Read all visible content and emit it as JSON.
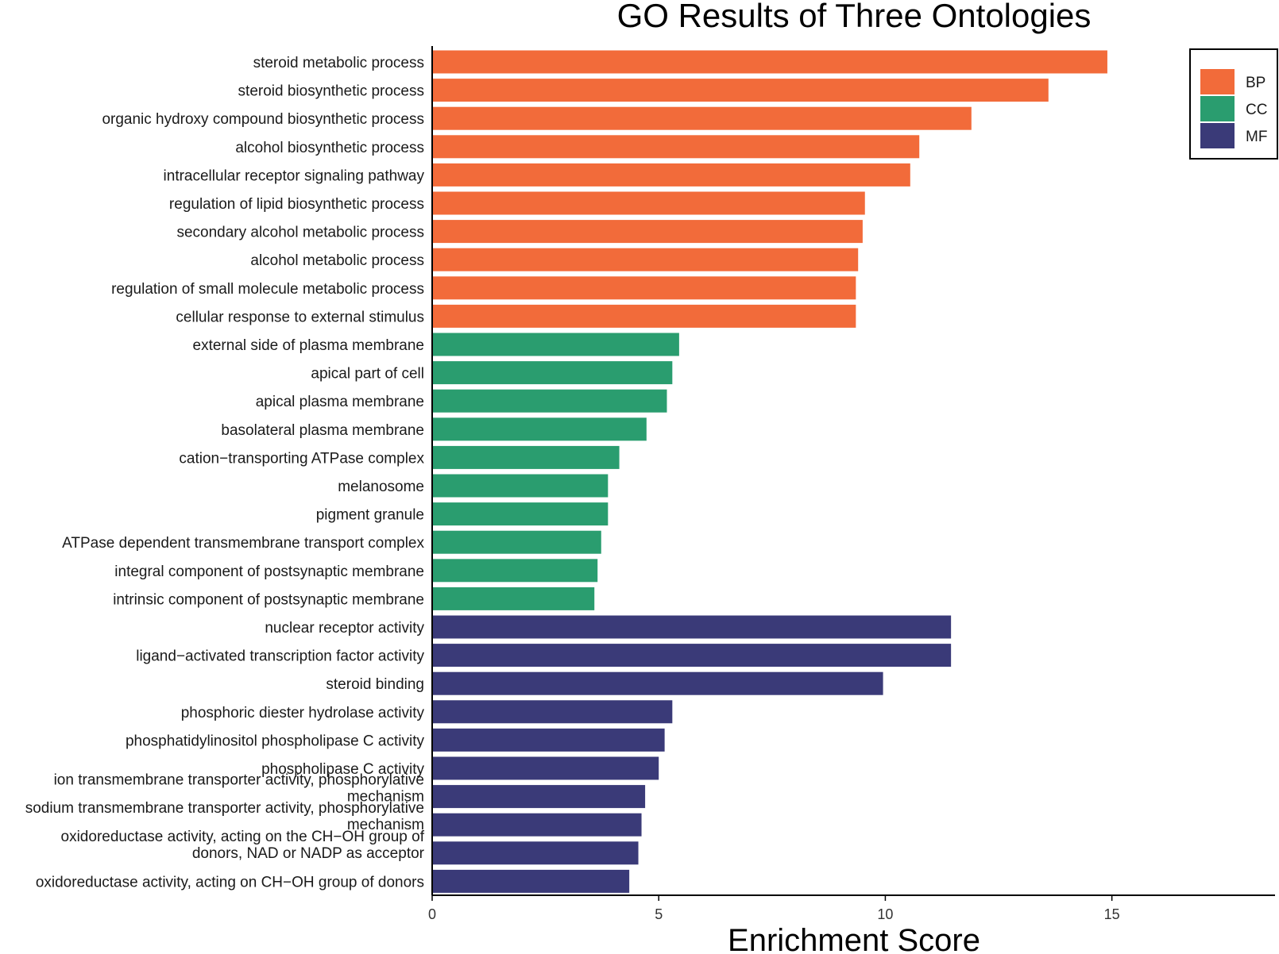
{
  "chart_data": {
    "type": "bar",
    "orientation": "horizontal",
    "title": "GO Results of Three Ontologies",
    "xlabel": "Enrichment Score",
    "ylabel": "",
    "xlim": [
      0,
      18.6
    ],
    "xticks": [
      0,
      5,
      10,
      15
    ],
    "grid": false,
    "legend_position": "top-right",
    "legend": [
      {
        "name": "BP",
        "color": "#F26B3A"
      },
      {
        "name": "CC",
        "color": "#2A9D6F"
      },
      {
        "name": "MF",
        "color": "#3A3A78"
      }
    ],
    "bars": [
      {
        "label": "steroid metabolic process",
        "value": 14.9,
        "group": "BP"
      },
      {
        "label": "steroid biosynthetic process",
        "value": 13.6,
        "group": "BP"
      },
      {
        "label": "organic hydroxy compound biosynthetic process",
        "value": 11.9,
        "group": "BP"
      },
      {
        "label": "alcohol biosynthetic process",
        "value": 10.75,
        "group": "BP"
      },
      {
        "label": "intracellular receptor signaling pathway",
        "value": 10.55,
        "group": "BP"
      },
      {
        "label": "regulation of lipid biosynthetic process",
        "value": 9.55,
        "group": "BP"
      },
      {
        "label": "secondary alcohol metabolic process",
        "value": 9.5,
        "group": "BP"
      },
      {
        "label": "alcohol metabolic process",
        "value": 9.4,
        "group": "BP"
      },
      {
        "label": "regulation of small molecule metabolic process",
        "value": 9.35,
        "group": "BP"
      },
      {
        "label": "cellular response to external stimulus",
        "value": 9.35,
        "group": "BP"
      },
      {
        "label": "external side of plasma membrane",
        "value": 5.45,
        "group": "CC"
      },
      {
        "label": "apical part of cell",
        "value": 5.3,
        "group": "CC"
      },
      {
        "label": "apical plasma membrane",
        "value": 5.18,
        "group": "CC"
      },
      {
        "label": "basolateral plasma membrane",
        "value": 4.73,
        "group": "CC"
      },
      {
        "label": "cation−transporting ATPase complex",
        "value": 4.13,
        "group": "CC"
      },
      {
        "label": "melanosome",
        "value": 3.88,
        "group": "CC"
      },
      {
        "label": "pigment granule",
        "value": 3.88,
        "group": "CC"
      },
      {
        "label": "ATPase dependent transmembrane transport complex",
        "value": 3.73,
        "group": "CC"
      },
      {
        "label": "integral component of postsynaptic membrane",
        "value": 3.65,
        "group": "CC"
      },
      {
        "label": "intrinsic component of postsynaptic membrane",
        "value": 3.58,
        "group": "CC"
      },
      {
        "label": "nuclear receptor activity",
        "value": 11.45,
        "group": "MF"
      },
      {
        "label": "ligand−activated transcription factor activity",
        "value": 11.45,
        "group": "MF"
      },
      {
        "label": "steroid binding",
        "value": 9.95,
        "group": "MF"
      },
      {
        "label": "phosphoric diester hydrolase activity",
        "value": 5.3,
        "group": "MF"
      },
      {
        "label": "phosphatidylinositol phospholipase C activity",
        "value": 5.13,
        "group": "MF"
      },
      {
        "label": "phospholipase C activity",
        "value": 5.0,
        "group": "MF"
      },
      {
        "label": "ion transmembrane transporter activity, phosphorylative mechanism",
        "lines": [
          "ion transmembrane transporter activity, phosphorylative",
          "mechanism"
        ],
        "value": 4.7,
        "group": "MF"
      },
      {
        "label": "sodium transmembrane transporter activity, phosphorylative mechanism",
        "lines": [
          "sodium transmembrane transporter activity, phosphorylative",
          "mechanism"
        ],
        "value": 4.62,
        "group": "MF"
      },
      {
        "label": "oxidoreductase activity, acting on the CH−OH group of donors, NAD or NADP as acceptor",
        "lines": [
          "oxidoreductase activity, acting on the CH−OH group of",
          "donors, NAD or NADP as acceptor"
        ],
        "value": 4.55,
        "group": "MF"
      },
      {
        "label": "oxidoreductase activity, acting on CH−OH group of donors",
        "value": 4.35,
        "group": "MF"
      }
    ]
  }
}
